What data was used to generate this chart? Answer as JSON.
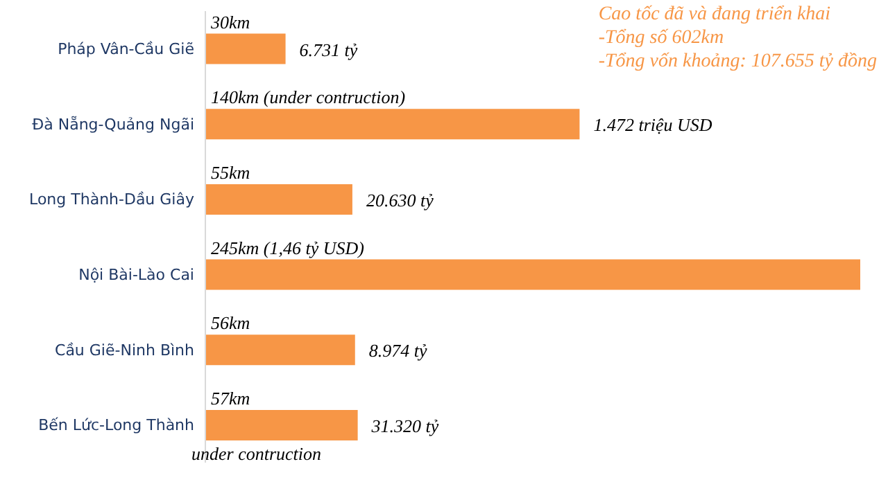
{
  "chart_data": {
    "type": "bar",
    "orientation": "horizontal",
    "xlim": [
      0,
      245
    ],
    "title": "Cao tốc đã và đang triển khai",
    "categories": [
      "Pháp Vân-Cầu Giẽ",
      "Đà Nẵng-Quảng Ngãi",
      "Long Thành-Dầu Giây",
      "Nội Bài-Lào Cai",
      "Cầu Giẽ-Ninh Bình",
      "Bến Lức-Long Thành"
    ],
    "values": [
      30,
      140,
      55,
      245,
      56,
      57
    ],
    "color": "#f79646",
    "value_labels": [
      "30km",
      "140km (under contruction)",
      "55km",
      "245km (1,46 tỷ USD)",
      "56km",
      "57km"
    ],
    "annotations": [
      "-Tổng số 602km",
      "-Tổng vốn khoảng: 107.655 tỷ đồng",
      {
        "text": "6.731 tỷ",
        "x": 30,
        "y": "Pháp Vân-Cầu Giẽ"
      },
      {
        "text": "1.472 triệu USD",
        "x": 140,
        "y": "Đà Nẵng-Quảng Ngãi"
      },
      {
        "text": "20.630 tỷ",
        "x": 55,
        "y": "Long Thành-Dầu Giây"
      },
      {
        "text": "8.974 tỷ",
        "x": 56,
        "y": "Cầu Giẽ-Ninh Bình"
      },
      {
        "text": "31.320 tỷ",
        "x": 57,
        "y": "Bến Lức-Long Thành"
      },
      {
        "text": "under contruction",
        "x": 0,
        "y": "Bến Lức-Long Thành"
      }
    ],
    "grid": false,
    "legend": false
  }
}
